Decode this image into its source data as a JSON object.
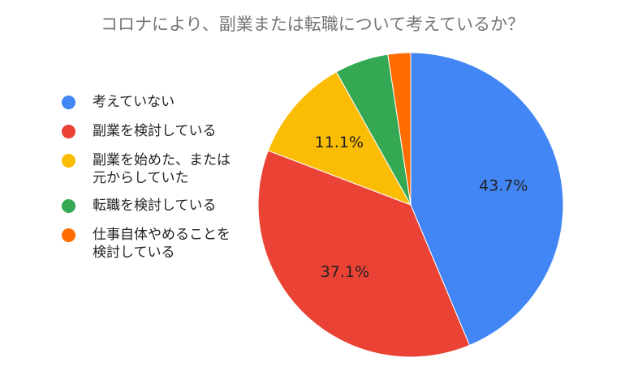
{
  "chart_data": {
    "type": "pie",
    "title": "コロナにより、副業または転職について考えているか？",
    "legend_position": "left",
    "slices": [
      {
        "label": "考えていない",
        "value": 43.7,
        "display": "43.7%",
        "color": "#4285F4"
      },
      {
        "label": "副業を検討している",
        "value": 37.1,
        "display": "37.1%",
        "color": "#EA4335"
      },
      {
        "label": "副業を始めた、または\n元からしていた",
        "value": 11.1,
        "display": "11.1%",
        "color": "#FBBC04"
      },
      {
        "label": "転職を検討している",
        "value": 5.7,
        "display": "",
        "color": "#34A853"
      },
      {
        "label": "仕事自体やめることを\n検討している",
        "value": 2.4,
        "display": "",
        "color": "#FF6D01"
      }
    ]
  }
}
